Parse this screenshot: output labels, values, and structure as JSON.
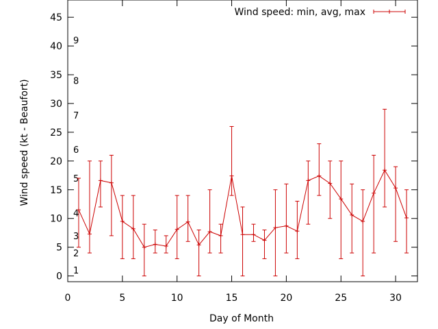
{
  "chart_data": {
    "type": "line",
    "xlabel": "Day of Month",
    "ylabel": "Wind speed (kt - Beaufort)",
    "xlim": [
      0,
      32
    ],
    "ylim": [
      -1,
      48
    ],
    "xticks": [
      0,
      5,
      10,
      15,
      20,
      25,
      30
    ],
    "yticks": [
      0,
      5,
      10,
      15,
      20,
      25,
      30,
      35,
      40,
      45
    ],
    "grid": false,
    "legend_position": "top-right",
    "series": [
      {
        "name": "Wind speed: min, avg, max",
        "color": "#cc0000",
        "x": [
          1,
          2,
          3,
          4,
          5,
          6,
          7,
          8,
          9,
          10,
          11,
          12,
          13,
          14,
          15,
          16,
          17,
          18,
          19,
          20,
          21,
          22,
          23,
          24,
          25,
          26,
          27,
          28,
          29,
          30,
          31
        ],
        "avg": [
          11.5,
          7.3,
          16.6,
          16.2,
          9.5,
          8.2,
          5,
          5.5,
          5.2,
          8.1,
          9.4,
          5.4,
          7.7,
          7,
          17.4,
          7.2,
          7.2,
          6.2,
          8.4,
          8.7,
          7.8,
          16.6,
          17.4,
          16.1,
          13.4,
          10.6,
          9.5,
          14.4,
          18.4,
          15.3,
          10.1
        ],
        "min": [
          5,
          4,
          12,
          7,
          3,
          3,
          0,
          4,
          4,
          3,
          6,
          0,
          4,
          4,
          14,
          0,
          6,
          3,
          0,
          4,
          3,
          9,
          14,
          10,
          3,
          4,
          0,
          4,
          12,
          6,
          4
        ],
        "max": [
          17,
          20,
          20,
          21,
          14,
          14,
          9,
          8,
          7,
          14,
          14,
          8,
          15,
          9,
          26,
          12,
          9,
          8,
          15,
          16,
          13,
          20,
          23,
          20,
          20,
          16,
          15,
          21,
          29,
          19,
          15
        ]
      }
    ],
    "beaufort_scale": [
      {
        "label": "1",
        "y": 1
      },
      {
        "label": "2",
        "y": 4
      },
      {
        "label": "3",
        "y": 7
      },
      {
        "label": "4",
        "y": 11
      },
      {
        "label": "5",
        "y": 17
      },
      {
        "label": "6",
        "y": 22
      },
      {
        "label": "7",
        "y": 28
      },
      {
        "label": "8",
        "y": 34
      },
      {
        "label": "9",
        "y": 41
      }
    ]
  }
}
